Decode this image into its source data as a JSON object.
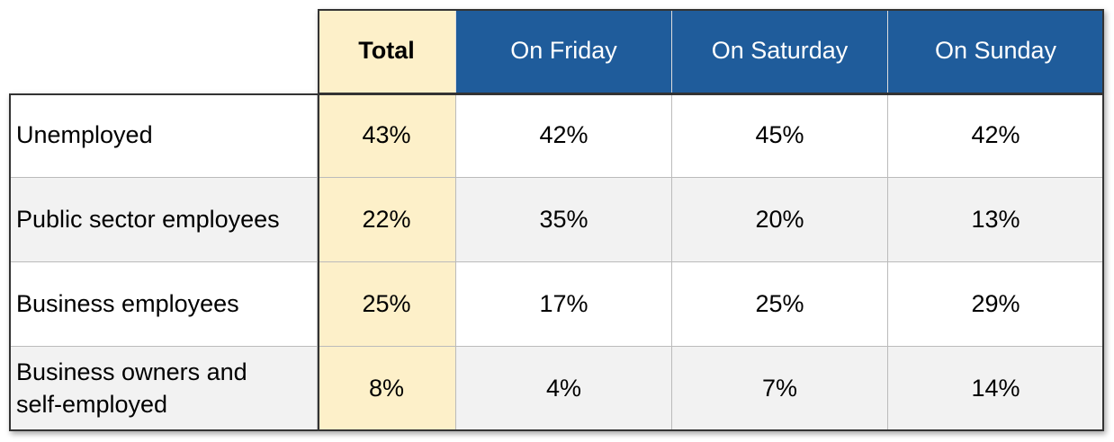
{
  "table": {
    "columns": [
      "Total",
      "On Friday",
      "On Saturday",
      "On Sunday"
    ],
    "rows": [
      {
        "label": "Unemployed",
        "cells": [
          "43%",
          "42%",
          "45%",
          "42%"
        ]
      },
      {
        "label": "Public sector employees",
        "cells": [
          "22%",
          "35%",
          "20%",
          "13%"
        ]
      },
      {
        "label": "Business employees",
        "cells": [
          "25%",
          "17%",
          "25%",
          "29%"
        ]
      },
      {
        "label": "Business owners and self-employed",
        "cells": [
          "8%",
          "4%",
          "7%",
          "14%"
        ]
      }
    ]
  }
}
